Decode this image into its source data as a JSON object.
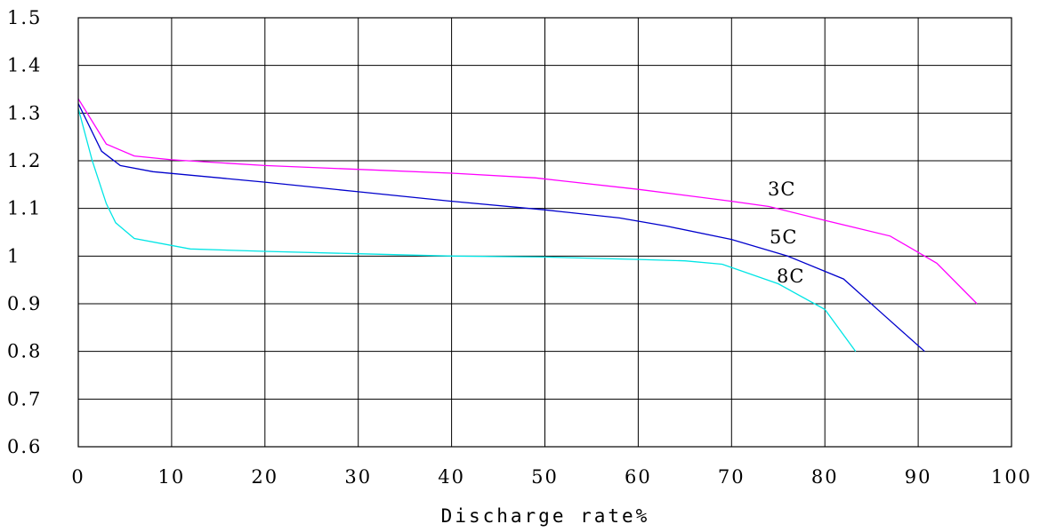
{
  "chart_data": {
    "type": "line",
    "title": "",
    "xlabel": "Discharge rate%",
    "ylabel": "",
    "xlim": [
      0,
      100
    ],
    "ylim": [
      0.6,
      1.5
    ],
    "grid": true,
    "x_ticks": [
      "0",
      "10",
      "20",
      "30",
      "40",
      "50",
      "60",
      "70",
      "80",
      "90",
      "100"
    ],
    "y_ticks": [
      "0.6",
      "0.7",
      "0.8",
      "0.9",
      "1",
      "1.1",
      "1.2",
      "1.3",
      "1.4",
      "1.5"
    ],
    "series": [
      {
        "name": "3C",
        "color": "#ff00ff",
        "points": [
          [
            0,
            1.33
          ],
          [
            3,
            1.235
          ],
          [
            6,
            1.21
          ],
          [
            10,
            1.202
          ],
          [
            20,
            1.19
          ],
          [
            30,
            1.182
          ],
          [
            40,
            1.174
          ],
          [
            49,
            1.164
          ],
          [
            60,
            1.14
          ],
          [
            70,
            1.115
          ],
          [
            74,
            1.104
          ],
          [
            80,
            1.075
          ],
          [
            87,
            1.042
          ],
          [
            92,
            0.985
          ],
          [
            96.3,
            0.9
          ]
        ]
      },
      {
        "name": "5C",
        "color": "#0000cc",
        "points": [
          [
            0,
            1.32
          ],
          [
            2.5,
            1.22
          ],
          [
            4.5,
            1.19
          ],
          [
            8,
            1.177
          ],
          [
            20,
            1.155
          ],
          [
            30,
            1.135
          ],
          [
            40,
            1.115
          ],
          [
            50,
            1.097
          ],
          [
            58,
            1.08
          ],
          [
            63,
            1.063
          ],
          [
            70,
            1.035
          ],
          [
            76,
            1.0
          ],
          [
            82,
            0.952
          ],
          [
            86,
            0.882
          ],
          [
            90.7,
            0.8
          ]
        ]
      },
      {
        "name": "8C",
        "color": "#00e5e5",
        "points": [
          [
            0,
            1.31
          ],
          [
            1.5,
            1.2
          ],
          [
            3,
            1.11
          ],
          [
            4,
            1.07
          ],
          [
            6,
            1.037
          ],
          [
            12,
            1.015
          ],
          [
            20,
            1.01
          ],
          [
            30,
            1.005
          ],
          [
            40,
            1.0
          ],
          [
            50,
            0.998
          ],
          [
            60,
            0.993
          ],
          [
            65,
            0.99
          ],
          [
            69,
            0.983
          ],
          [
            75,
            0.942
          ],
          [
            80,
            0.888
          ],
          [
            83.3,
            0.8
          ]
        ]
      }
    ]
  }
}
